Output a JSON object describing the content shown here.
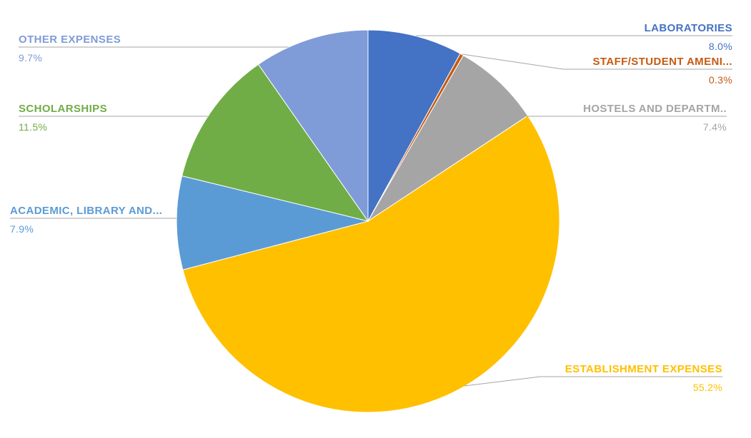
{
  "chart_data": {
    "type": "pie",
    "direction": "clockwise",
    "start_angle_deg": 0,
    "legend": "none",
    "background": "#FFFFFF",
    "leader_line_color": "#A6A6A6",
    "slices": [
      {
        "label": "LABORATORIES",
        "value": 8.0,
        "pct_label": "8.0%",
        "color": "#4472C4"
      },
      {
        "label": "STAFF/STUDENT AMENI...",
        "value": 0.3,
        "pct_label": "0.3%",
        "color": "#C55A11"
      },
      {
        "label": "HOSTELS AND DEPARTM..",
        "value": 7.4,
        "pct_label": "7.4%",
        "color": "#A5A5A5"
      },
      {
        "label": "ESTABLISHMENT EXPENSES",
        "value": 55.2,
        "pct_label": "55.2%",
        "color": "#FFC000"
      },
      {
        "label": "ACADEMIC, LIBRARY AND...",
        "value": 7.9,
        "pct_label": "7.9%",
        "color": "#5B9BD5"
      },
      {
        "label": "SCHOLARSHIPS",
        "value": 11.5,
        "pct_label": "11.5%",
        "color": "#70AD47"
      },
      {
        "label": "OTHER EXPENSES",
        "value": 9.7,
        "pct_label": "9.7%",
        "color": "#7F9BD8"
      }
    ]
  }
}
